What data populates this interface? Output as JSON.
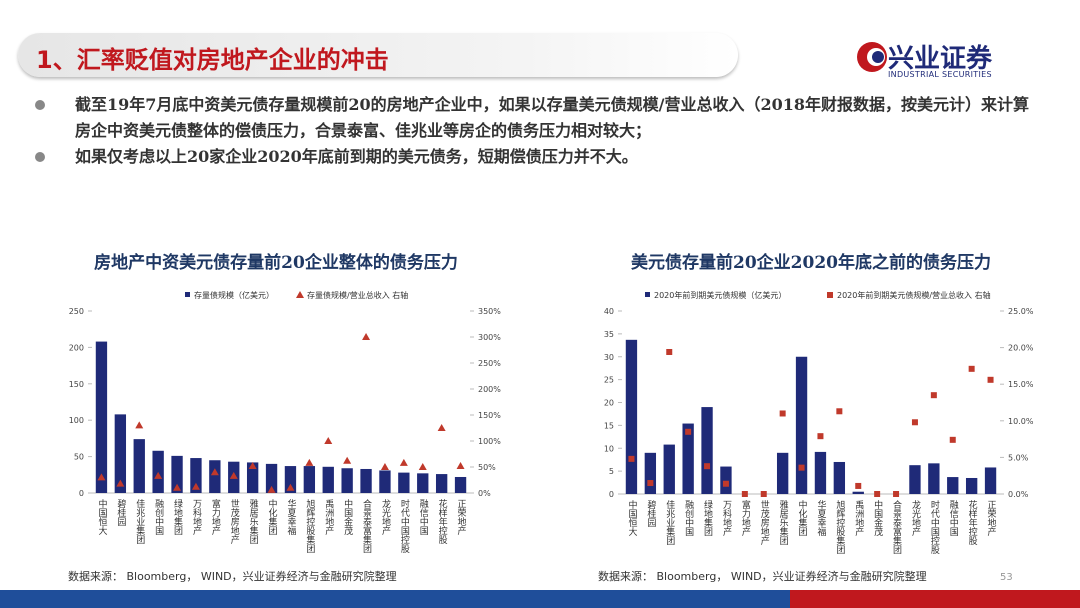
{
  "header": {
    "title": "1、汇率贬值对房地产企业的冲击",
    "logo_name": "兴业证券",
    "logo_en": "INDUSTRIAL SECURITIES"
  },
  "bullets": [
    "截至19年7月底中资美元债存量规模前20的房地产企业中，如果以存量美元债规模/营业总收入（2018年财报数据，按美元计）来计算房企中资美元债整体的偿债压力，合景泰富、佳兆业等房企的债务压力相对较大；",
    "如果仅考虑以上20家企业2020年底前到期的美元债务，短期偿债压力并不大。"
  ],
  "chart_data": [
    {
      "type": "bar",
      "title": "房地产中资美元债存量前20企业整体的债务压力",
      "categories": [
        "中国恒大",
        "碧桂园",
        "佳兆业集团",
        "融创中国",
        "绿地集团",
        "万科地产",
        "富力地产",
        "世茂房地产",
        "雅居乐集团",
        "中化集团",
        "华夏幸福",
        "旭辉控股集团",
        "禹洲地产",
        "中国金茂",
        "合景泰富集团",
        "龙光地产",
        "时代中国控股",
        "融信中国",
        "花样年控股",
        "正荣地产"
      ],
      "series": [
        {
          "name": "存量债规模（亿美元）",
          "type": "bar",
          "color": "#1f2a78",
          "values": [
            208,
            108,
            74,
            58,
            51,
            48,
            45,
            43,
            42,
            40,
            37,
            37,
            36,
            34,
            33,
            31,
            28,
            27,
            26,
            22
          ]
        },
        {
          "name": "存量债规模/营业总收入 右轴",
          "type": "scatter",
          "marker": "triangle",
          "axis": "y2",
          "color": "#c0392b",
          "values": [
            30,
            18,
            130,
            33,
            10,
            12,
            40,
            33,
            52,
            6,
            10,
            58,
            100,
            62,
            300,
            50,
            58,
            50,
            125,
            52
          ]
        }
      ],
      "ylim": [
        0,
        250
      ],
      "yticks": [
        0,
        50,
        100,
        150,
        200,
        250
      ],
      "y2lim": [
        0,
        350
      ],
      "y2ticks": [
        {
          "value": 0,
          "label": "0%"
        },
        {
          "value": 50,
          "label": "50%"
        },
        {
          "value": 100,
          "label": "100%"
        },
        {
          "value": 150,
          "label": "150%"
        },
        {
          "value": 200,
          "label": "200%"
        },
        {
          "value": 250,
          "label": "250%"
        },
        {
          "value": 300,
          "label": "300%"
        },
        {
          "value": 350,
          "label": "350%"
        }
      ],
      "source": "数据来源： Bloomberg， WIND，兴业证券经济与金融研究院整理"
    },
    {
      "type": "bar",
      "title": "美元债存量前20企业2020年底之前的债务压力",
      "categories": [
        "中国恒大",
        "碧桂园",
        "佳兆业集团",
        "融创中国",
        "绿地集团",
        "万科地产",
        "富力地产",
        "世茂房地产",
        "雅居乐集团",
        "中化集团",
        "华夏幸福",
        "旭辉控股集团",
        "禹洲地产",
        "中国金茂",
        "合景泰富集团",
        "龙光地产",
        "时代中国控股",
        "融信中国",
        "花样年控股",
        "正荣地产"
      ],
      "series": [
        {
          "name": "2020年前到期美元债规模（亿美元）",
          "type": "bar",
          "color": "#1f2a78",
          "values": [
            33.7,
            9,
            10.8,
            15.4,
            19,
            6,
            0,
            0,
            9,
            30,
            9.2,
            7,
            0.5,
            0,
            0,
            6.3,
            6.7,
            3.7,
            3.5,
            5.8
          ]
        },
        {
          "name": "2020年前到期美元债规模/营业总收入 右轴",
          "type": "scatter",
          "marker": "square",
          "axis": "y2",
          "color": "#c0392b",
          "values": [
            4.8,
            1.5,
            19.4,
            8.5,
            3.8,
            1.4,
            0,
            0,
            11,
            3.6,
            7.9,
            11.3,
            1.1,
            0,
            0,
            9.8,
            13.5,
            7.4,
            17.1,
            15.6
          ]
        }
      ],
      "ylim": [
        0,
        40
      ],
      "yticks": [
        0,
        5,
        10,
        15,
        20,
        25,
        30,
        35,
        40
      ],
      "y2lim": [
        0,
        25
      ],
      "y2ticks": [
        {
          "value": 0,
          "label": "0.0%"
        },
        {
          "value": 5,
          "label": "5.0%"
        },
        {
          "value": 10,
          "label": "10.0%"
        },
        {
          "value": 15,
          "label": "15.0%"
        },
        {
          "value": 20,
          "label": "20.0%"
        },
        {
          "value": 25,
          "label": "25.0%"
        }
      ],
      "source": "数据来源： Bloomberg， WIND，兴业证券经济与金融研究院整理"
    }
  ],
  "page_number": "53"
}
